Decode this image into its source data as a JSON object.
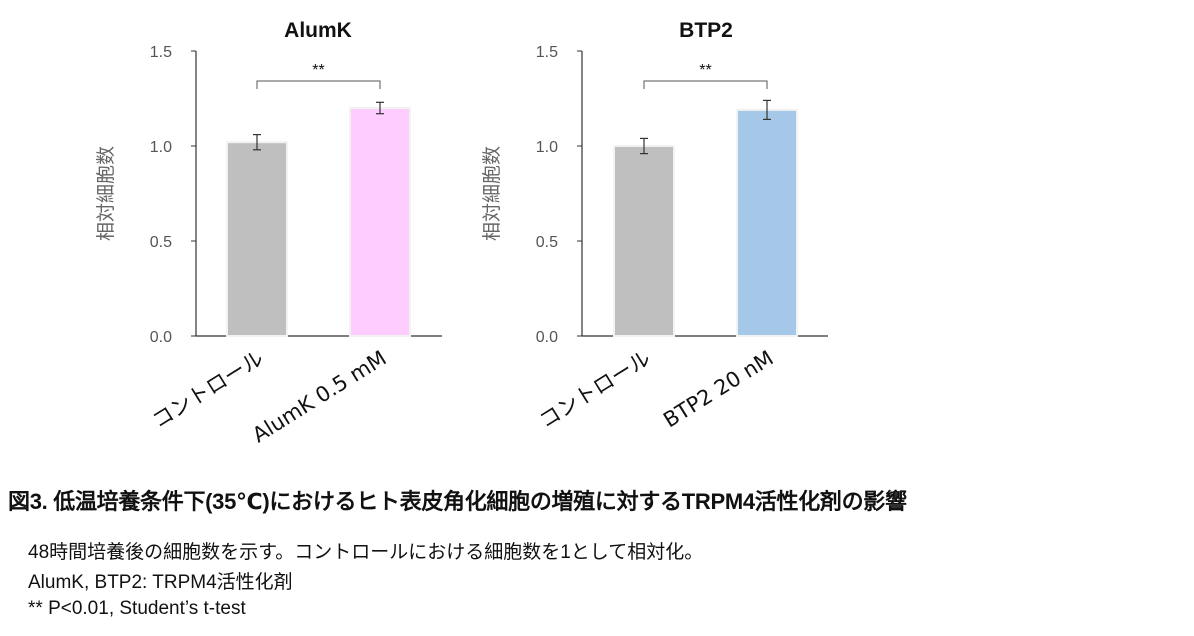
{
  "chart_data": [
    {
      "type": "bar",
      "title": "AlumK",
      "ylabel": "相対細胞数",
      "categories": [
        "コントロール",
        "AlumK 0.5 mM"
      ],
      "values": [
        1.02,
        1.2
      ],
      "errors": [
        0.04,
        0.03
      ],
      "colors": [
        "#bfbfbf",
        "#ffccff"
      ],
      "ylim": [
        0,
        1.5
      ],
      "yticks": [
        "0.0",
        "0.5",
        "1.0",
        "1.5"
      ],
      "significance": "**",
      "grid": false
    },
    {
      "type": "bar",
      "title": "BTP2",
      "ylabel": "相対細胞数",
      "categories": [
        "コントロール",
        "BTP2 20 nM"
      ],
      "values": [
        1.0,
        1.19
      ],
      "errors": [
        0.04,
        0.05
      ],
      "colors": [
        "#bfbfbf",
        "#a6c8e8"
      ],
      "ylim": [
        0,
        1.5
      ],
      "yticks": [
        "0.0",
        "0.5",
        "1.0",
        "1.5"
      ],
      "significance": "**",
      "grid": false
    }
  ],
  "caption": {
    "title": "図3. 低温培養条件下(35℃)におけるヒト表皮角化細胞の増殖に対するTRPM4活性化剤の影響",
    "lines": [
      "48時間培養後の細胞数を示す。コントロールにおける細胞数を1として相対化。",
      "AlumK, BTP2: TRPM4活性化剤",
      "** P<0.01, Student’s t-test"
    ]
  }
}
